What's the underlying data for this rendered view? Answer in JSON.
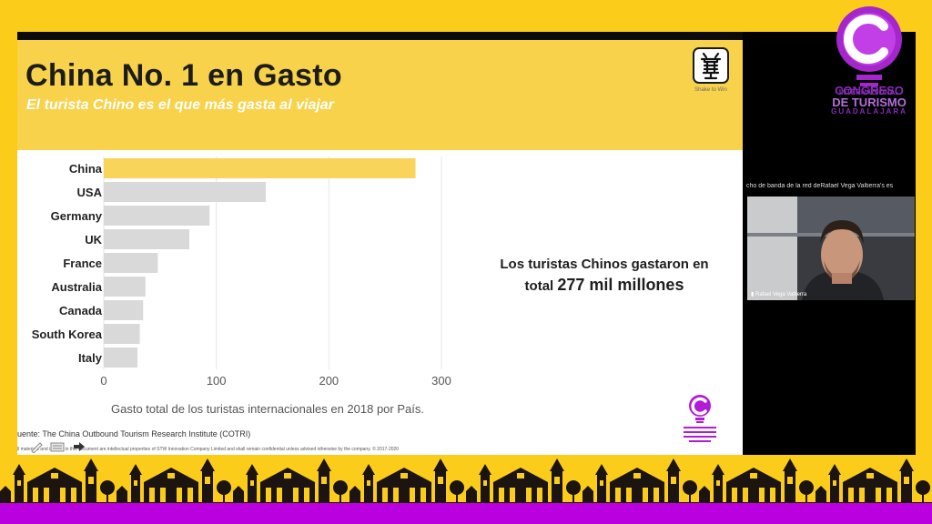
{
  "slide": {
    "title": "China No. 1 en Gasto",
    "subtitle": "El turista Chino es el que más gasta al viajar",
    "logo_caption": "Shake to Win",
    "source": "uente: The China Outbound Tourism Research Institute (COTRI)",
    "legal": "ll materials and images in this document are intellectual properties of STW Innovation Company Limited and shall remain confidential unless advised otherwise by the company. © 2017-2020",
    "callout_line1": "Los turistas Chinos gastaron en",
    "callout_prefix": "total ",
    "callout_value": "277 mil millones",
    "chart_caption": "Gasto total de los turistas internacionales en 2018 por País."
  },
  "chart_data": {
    "type": "bar",
    "orientation": "horizontal",
    "categories": [
      "China",
      "USA",
      "Germany",
      "UK",
      "France",
      "Australia",
      "Canada",
      "South Korea",
      "Italy"
    ],
    "values": [
      277,
      144,
      94,
      76,
      48,
      37,
      35,
      32,
      30
    ],
    "xlim": [
      0,
      300
    ],
    "xticks": [
      0,
      100,
      200,
      300
    ],
    "highlight_index": 0,
    "colors": {
      "highlight": "#f9d45b",
      "default": "#d9d9d9"
    },
    "grid": true,
    "xlabel": "Gasto total de los turistas internacionales en 2018 por País."
  },
  "sidebar": {
    "brand": {
      "line1": "CONGRESO",
      "line2": "INTERNACIONAL",
      "line3": "DE TURISMO",
      "line4": "GUADALAJARA"
    },
    "network_message": "cho de banda de la red deRafael Vega Valtierra's es",
    "participant_name": "Rafael Vega Valtierra"
  },
  "colors": {
    "background": "#fccc1b",
    "purple": "#bb00e0",
    "slide_header": "#f7d24a"
  }
}
